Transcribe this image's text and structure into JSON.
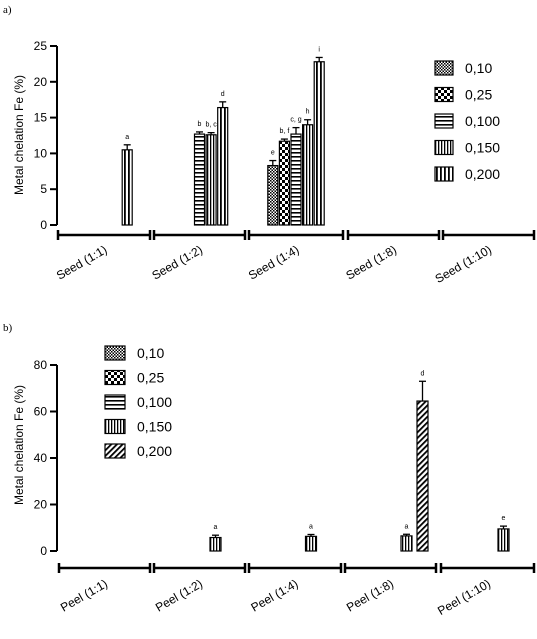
{
  "chart_data": [
    {
      "type": "bar",
      "panel_label": "a)",
      "ylabel": "Metal chelation Fe (%)",
      "ylim": [
        0,
        25
      ],
      "yticks": [
        "0",
        "5",
        "10",
        "15",
        "20",
        "25"
      ],
      "categories": [
        "Seed (1:1)",
        "Seed (1:2)",
        "Seed (1:4)",
        "Seed (1:8)",
        "Seed (1:10)"
      ],
      "legend_position": "right",
      "legend": [
        "0,10",
        "0,25",
        "0,100",
        "0,150",
        "0,200"
      ],
      "series": [
        {
          "name": "0,10",
          "pattern": "dots",
          "values": [
            null,
            null,
            8.3,
            null,
            null
          ],
          "errors": [
            null,
            null,
            0.7,
            null,
            null
          ],
          "labels": [
            null,
            null,
            "e",
            null,
            null
          ]
        },
        {
          "name": "0,25",
          "pattern": "checks",
          "values": [
            null,
            null,
            11.7,
            null,
            null
          ],
          "errors": [
            null,
            null,
            0.3,
            null,
            null
          ],
          "labels": [
            null,
            null,
            "b, f",
            null,
            null
          ]
        },
        {
          "name": "0,100",
          "pattern": "hlines",
          "values": [
            null,
            12.7,
            12.7,
            null,
            null
          ],
          "errors": [
            null,
            0.3,
            0.9,
            null,
            null
          ],
          "labels": [
            null,
            "b",
            "c, g",
            null,
            null
          ]
        },
        {
          "name": "0,150",
          "pattern": "vlines",
          "values": [
            null,
            12.6,
            14.0,
            null,
            null
          ],
          "errors": [
            null,
            0.3,
            0.7,
            null,
            null
          ],
          "labels": [
            null,
            "b, c",
            "h",
            null,
            null
          ]
        },
        {
          "name": "0,200",
          "pattern": "vthick",
          "values": [
            10.5,
            16.4,
            22.8,
            null,
            null
          ],
          "errors": [
            0.7,
            0.8,
            0.6,
            null,
            null
          ],
          "labels": [
            "a",
            "d",
            "i",
            null,
            null
          ]
        }
      ]
    },
    {
      "type": "bar",
      "panel_label": "b)",
      "ylabel": "Metal chelation Fe (%)",
      "ylim": [
        0,
        80
      ],
      "yticks": [
        "0",
        "20",
        "40",
        "60",
        "80"
      ],
      "categories": [
        "Peel (1:1)",
        "Peel (1:2)",
        "Peel (1:4)",
        "Peel (1:8)",
        "Peel (1:10)"
      ],
      "legend_position": "top-left",
      "legend": [
        "0,10",
        "0,25",
        "0,100",
        "0,150",
        "0,200"
      ],
      "series": [
        {
          "name": "0,10",
          "pattern": "dots",
          "values": [
            null,
            null,
            null,
            null,
            null
          ],
          "errors": [
            null,
            null,
            null,
            null,
            null
          ],
          "labels": [
            null,
            null,
            null,
            null,
            null
          ]
        },
        {
          "name": "0,25",
          "pattern": "checks",
          "values": [
            null,
            null,
            null,
            null,
            null
          ],
          "errors": [
            null,
            null,
            null,
            null,
            null
          ],
          "labels": [
            null,
            null,
            null,
            null,
            null
          ]
        },
        {
          "name": "0,100",
          "pattern": "hlines",
          "values": [
            null,
            null,
            null,
            null,
            null
          ],
          "errors": [
            null,
            null,
            null,
            null,
            null
          ],
          "labels": [
            null,
            null,
            null,
            null,
            null
          ]
        },
        {
          "name": "0,150",
          "pattern": "vlines",
          "values": [
            null,
            5.8,
            6.3,
            6.5,
            9.5
          ],
          "errors": [
            null,
            1.0,
            0.8,
            0.7,
            1.2
          ],
          "labels": [
            null,
            "a",
            "a",
            "a",
            "e"
          ]
        },
        {
          "name": "0,200",
          "pattern": "diag",
          "values": [
            null,
            null,
            null,
            64.5,
            null
          ],
          "errors": [
            null,
            null,
            null,
            8.5,
            null
          ],
          "labels": [
            null,
            null,
            null,
            "d",
            null
          ]
        }
      ]
    }
  ]
}
